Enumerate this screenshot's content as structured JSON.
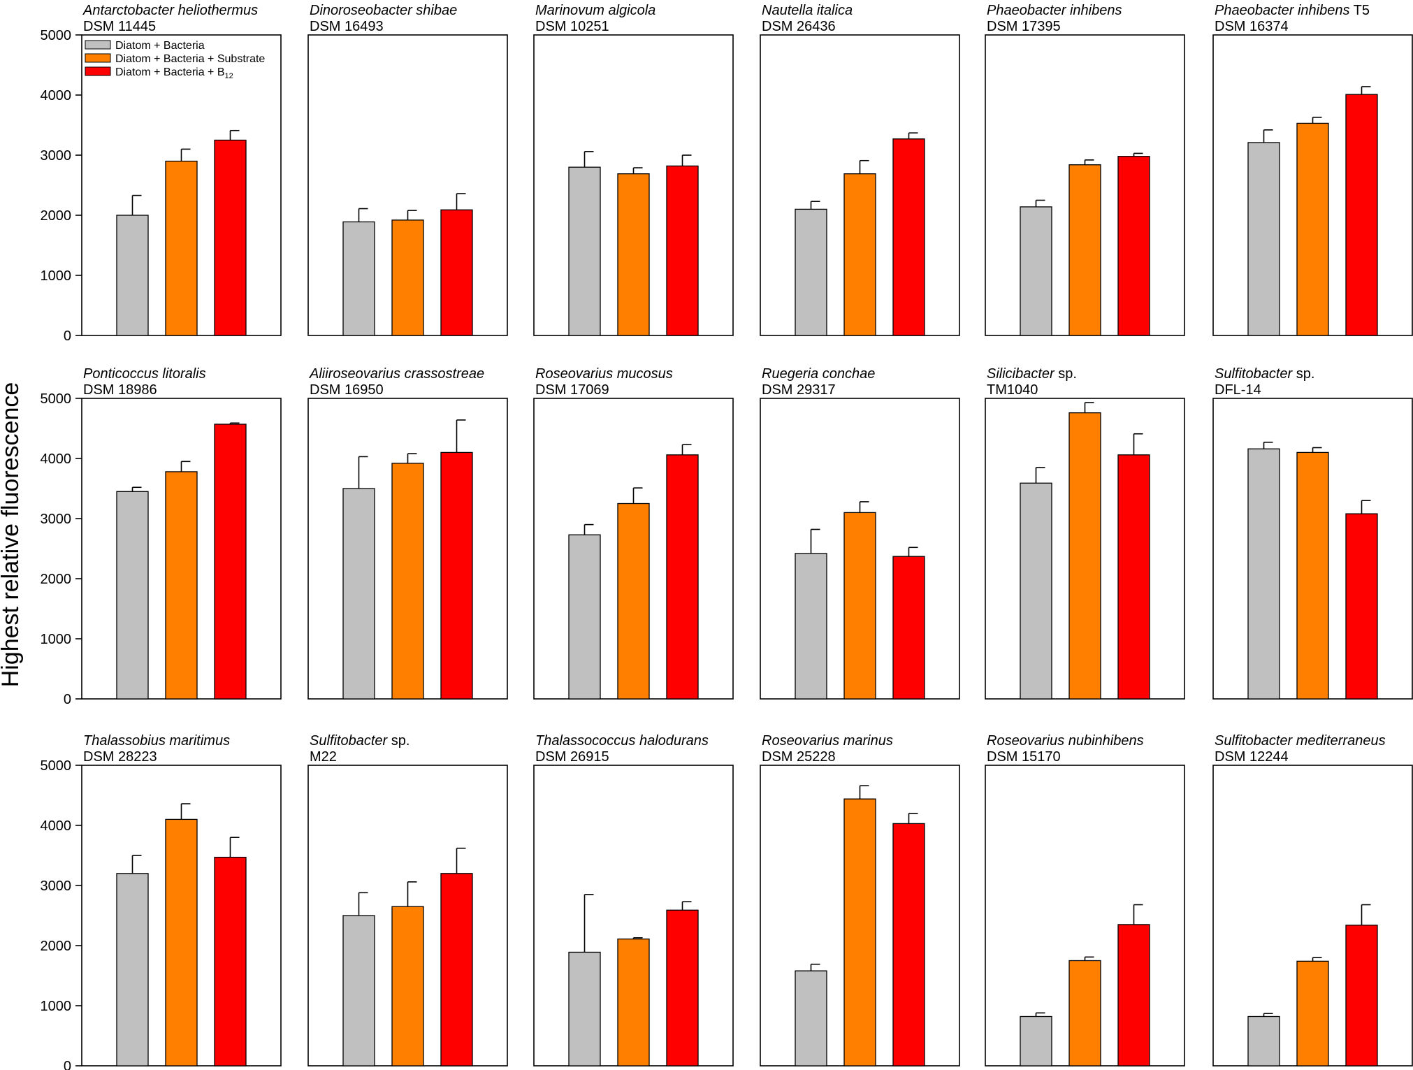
{
  "figure": {
    "ylabel": "Highest relative fluorescence"
  },
  "legend": {
    "entries": [
      {
        "label": "Diatom + Bacteria",
        "sub": "",
        "color": "#c0c0c0"
      },
      {
        "label": "Diatom + Bacteria + Substrate",
        "sub": "",
        "color": "#ff8000"
      },
      {
        "label": "Diatom + Bacteria + B",
        "sub": "12",
        "color": "#ff0000"
      }
    ]
  },
  "chart_data": {
    "type": "bar",
    "ylabel": "Highest relative fluorescence",
    "ylim": [
      0,
      5000
    ],
    "yticks": [
      0,
      1000,
      2000,
      3000,
      4000,
      5000
    ],
    "series_names": [
      "Diatom + Bacteria",
      "Diatom + Bacteria + Substrate",
      "Diatom + Bacteria + B12"
    ],
    "colors": [
      "#c0c0c0",
      "#ff8000",
      "#ff0000"
    ],
    "panels": [
      {
        "species": "Antarctobacter heliothermus",
        "species_extra": "",
        "strain": "DSM 11445",
        "values": [
          2000,
          2900,
          3250
        ],
        "errors": [
          330,
          200,
          160
        ]
      },
      {
        "species": "Dinoroseobacter shibae",
        "species_extra": "",
        "strain": "DSM 16493",
        "values": [
          1890,
          1920,
          2090
        ],
        "errors": [
          220,
          160,
          270
        ]
      },
      {
        "species": "Marinovum algicola",
        "species_extra": "",
        "strain": "DSM 10251",
        "values": [
          2800,
          2690,
          2820
        ],
        "errors": [
          260,
          100,
          180
        ]
      },
      {
        "species": "Nautella italica",
        "species_extra": "",
        "strain": "DSM 26436",
        "values": [
          2100,
          2690,
          3270
        ],
        "errors": [
          130,
          220,
          100
        ]
      },
      {
        "species": "Phaeobacter inhibens",
        "species_extra": "",
        "strain": "DSM 17395",
        "values": [
          2140,
          2840,
          2980
        ],
        "errors": [
          110,
          80,
          50
        ]
      },
      {
        "species": "Phaeobacter inhibens",
        "species_extra": " T5",
        "strain": "DSM 16374",
        "values": [
          3210,
          3530,
          4010
        ],
        "errors": [
          210,
          100,
          130
        ]
      },
      {
        "species": "Ponticoccus litoralis",
        "species_extra": "",
        "strain": "DSM 18986",
        "values": [
          3450,
          3780,
          4570
        ],
        "errors": [
          70,
          170,
          20
        ]
      },
      {
        "species": "Aliiroseovarius crassostreae",
        "species_extra": "",
        "strain": "DSM 16950",
        "values": [
          3500,
          3920,
          4100
        ],
        "errors": [
          530,
          160,
          540
        ]
      },
      {
        "species": "Roseovarius mucosus",
        "species_extra": "",
        "strain": "DSM 17069",
        "values": [
          2730,
          3250,
          4060
        ],
        "errors": [
          170,
          260,
          170
        ]
      },
      {
        "species": "Ruegeria conchae",
        "species_extra": "",
        "strain": "DSM 29317",
        "values": [
          2420,
          3100,
          2370
        ],
        "errors": [
          400,
          180,
          150
        ]
      },
      {
        "species": "Silicibacter",
        "species_extra": " sp.",
        "strain": "TM1040",
        "values": [
          3590,
          4760,
          4060
        ],
        "errors": [
          260,
          170,
          350
        ]
      },
      {
        "species": "Sulfitobacter",
        "species_extra": " sp.",
        "strain": "DFL-14",
        "values": [
          4160,
          4100,
          3080
        ],
        "errors": [
          110,
          80,
          220
        ]
      },
      {
        "species": "Thalassobius maritimus",
        "species_extra": "",
        "strain": "DSM 28223",
        "values": [
          3200,
          4100,
          3470
        ],
        "errors": [
          300,
          260,
          330
        ]
      },
      {
        "species": "Sulfitobacter",
        "species_extra": " sp.",
        "strain": "M22",
        "values": [
          2500,
          2650,
          3200
        ],
        "errors": [
          380,
          410,
          420
        ]
      },
      {
        "species": "Thalassococcus halodurans",
        "species_extra": "",
        "strain": "DSM 26915",
        "values": [
          1890,
          2110,
          2590
        ],
        "errors": [
          960,
          20,
          140
        ]
      },
      {
        "species": "Roseovarius marinus",
        "species_extra": "",
        "strain": "DSM 25228",
        "values": [
          1580,
          4440,
          4030
        ],
        "errors": [
          110,
          220,
          170
        ]
      },
      {
        "species": "Roseovarius nubinhibens",
        "species_extra": "",
        "strain": "DSM 15170",
        "values": [
          820,
          1750,
          2350
        ],
        "errors": [
          60,
          60,
          330
        ]
      },
      {
        "species": "Sulfitobacter mediterraneus",
        "species_extra": "",
        "strain": "DSM 12244",
        "values": [
          820,
          1740,
          2340
        ],
        "errors": [
          50,
          60,
          340
        ]
      }
    ]
  }
}
